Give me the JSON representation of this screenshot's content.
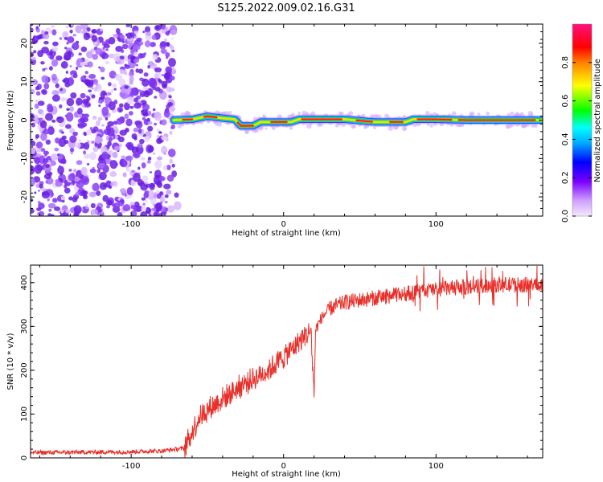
{
  "title": "S125.2022.009.02.16.G31",
  "colors": {
    "snr_line": "#e8302a",
    "scatter_violet": "#7a2cf0"
  },
  "chart_data": [
    {
      "type": "heatmap",
      "xlabel": "Height of straight line (km)",
      "ylabel": "Frequency (Hz)",
      "xlim": [
        -166,
        170
      ],
      "ylim": [
        -25,
        25
      ],
      "x_ticks": [
        -100,
        0,
        100
      ],
      "y_ticks": [
        -20,
        -10,
        0,
        10,
        20
      ],
      "grid": false,
      "colorbar": {
        "label": "Normalized spectral amplitude",
        "range": [
          0,
          1
        ],
        "ticks": [
          0.0,
          0.2,
          0.4,
          0.6,
          0.8
        ],
        "colormap": [
          "#ffffff",
          "#d0a0ff",
          "#7a00ff",
          "#0000ff",
          "#00ffff",
          "#00ff00",
          "#ffff00",
          "#ff8000",
          "#ff0000",
          "#ff0080"
        ]
      },
      "noise_region": {
        "x_range": [
          -166,
          -72
        ],
        "y_range": [
          -25,
          25
        ],
        "amplitude": 0.15
      },
      "ridge": [
        [
          -72,
          0
        ],
        [
          -60,
          0.2
        ],
        [
          -50,
          1
        ],
        [
          -40,
          0.5
        ],
        [
          -32,
          0.2
        ],
        [
          -28,
          -1.5
        ],
        [
          -20,
          -1.5
        ],
        [
          -15,
          -0.5
        ],
        [
          -5,
          -0.5
        ],
        [
          5,
          -0.5
        ],
        [
          10,
          0.2
        ],
        [
          40,
          0.2
        ],
        [
          60,
          -0.5
        ],
        [
          80,
          -0.5
        ],
        [
          85,
          0.2
        ],
        [
          100,
          0.2
        ],
        [
          120,
          0
        ],
        [
          150,
          0
        ],
        [
          170,
          0
        ]
      ]
    },
    {
      "type": "line",
      "xlabel": "Height of straight line (km)",
      "ylabel": "SNR (10 * v/v)",
      "xlim": [
        -166,
        170
      ],
      "ylim": [
        0,
        440
      ],
      "x_ticks": [
        -100,
        0,
        100
      ],
      "y_ticks": [
        0,
        100,
        200,
        300,
        400
      ],
      "grid": false,
      "series": [
        {
          "x": [
            -166,
            -130,
            -100,
            -80,
            -65,
            -60,
            -55,
            -50,
            -40,
            -30,
            -20,
            -10,
            0,
            10,
            18,
            20,
            21,
            22,
            25,
            30,
            40,
            60,
            80,
            100,
            120,
            140,
            160,
            170
          ],
          "y": [
            12,
            13,
            14,
            16,
            22,
            60,
            95,
            110,
            135,
            160,
            180,
            200,
            230,
            265,
            290,
            140,
            290,
            300,
            320,
            340,
            355,
            365,
            375,
            385,
            390,
            395,
            395,
            395
          ]
        }
      ]
    }
  ]
}
